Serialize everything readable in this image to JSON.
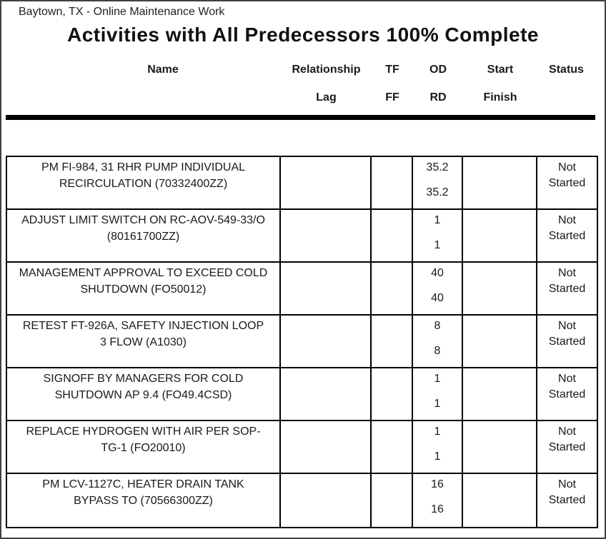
{
  "report": {
    "breadcrumb": "Baytown, TX - Online Maintenance Work",
    "title": "Activities with All Predecessors 100% Complete"
  },
  "table": {
    "headers_row1": {
      "name": "Name",
      "relationship": "Relationship",
      "tf": "TF",
      "od": "OD",
      "start": "Start",
      "status": "Status"
    },
    "headers_row2": {
      "lag": "Lag",
      "ff": "FF",
      "rd": "RD",
      "finish": "Finish"
    },
    "rows": [
      {
        "name": [
          "PM FI-984, 31 RHR PUMP INDIVIDUAL",
          "RECIRCULATION (70332400ZZ)"
        ],
        "relationship_lag": "",
        "tf_ff": "",
        "od": "35.2",
        "rd": "35.2",
        "start_finish": "",
        "status": "Not Started"
      },
      {
        "name": [
          "ADJUST LIMIT SWITCH ON RC-AOV-549-33/O",
          "(80161700ZZ)"
        ],
        "relationship_lag": "",
        "tf_ff": "",
        "od": "1",
        "rd": "1",
        "start_finish": "",
        "status": "Not Started"
      },
      {
        "name": [
          "MANAGEMENT APPROVAL TO EXCEED COLD",
          "SHUTDOWN (FO50012)"
        ],
        "relationship_lag": "",
        "tf_ff": "",
        "od": "40",
        "rd": "40",
        "start_finish": "",
        "status": "Not Started"
      },
      {
        "name": [
          "RETEST FT-926A, SAFETY INJECTION LOOP",
          "3 FLOW (A1030)"
        ],
        "relationship_lag": "",
        "tf_ff": "",
        "od": "8",
        "rd": "8",
        "start_finish": "",
        "status": "Not Started"
      },
      {
        "name": [
          "SIGNOFF BY MANAGERS FOR COLD",
          "SHUTDOWN AP 9.4 (FO49.4CSD)"
        ],
        "relationship_lag": "",
        "tf_ff": "",
        "od": "1",
        "rd": "1",
        "start_finish": "",
        "status": "Not Started"
      },
      {
        "name": [
          "REPLACE HYDROGEN WITH AIR PER SOP-",
          "TG-1 (FO20010)"
        ],
        "relationship_lag": "",
        "tf_ff": "",
        "od": "1",
        "rd": "1",
        "start_finish": "",
        "status": "Not Started"
      },
      {
        "name": [
          "PM LCV-1127C, HEATER DRAIN TANK",
          "BYPASS TO (70566300ZZ)"
        ],
        "relationship_lag": "",
        "tf_ff": "",
        "od": "16",
        "rd": "16",
        "start_finish": "",
        "status": "Not Started"
      }
    ]
  },
  "colors": {
    "background": "#ffffff",
    "text": "#1a1a1a",
    "table_border": "#000000",
    "page_frame": "#404040"
  }
}
